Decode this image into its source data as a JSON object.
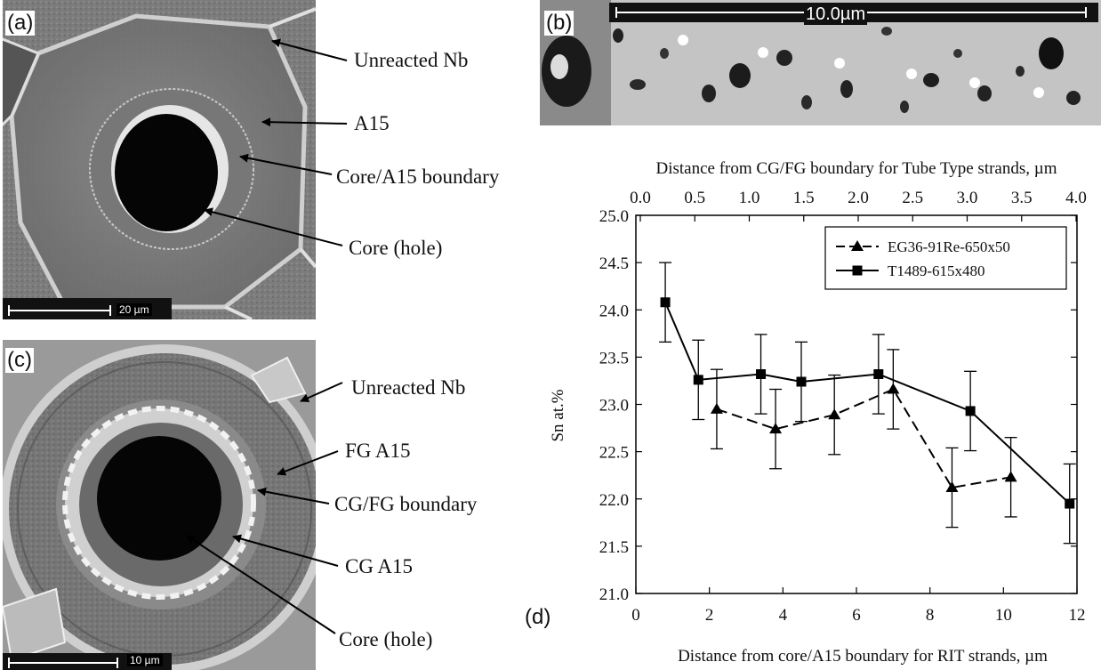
{
  "panels": {
    "a": {
      "label": "(a)",
      "scale_text": "20 µm",
      "annotations": [
        "Unreacted Nb",
        "A15",
        "Core/A15 boundary",
        "Core (hole)"
      ]
    },
    "b": {
      "label": "(b)",
      "scale_text": "10.0µm"
    },
    "c": {
      "label": "(c)",
      "scale_text": "10 µm",
      "annotations": [
        "Unreacted Nb",
        "FG A15",
        "CG/FG boundary",
        "CG A15",
        "Core (hole)"
      ]
    },
    "d": {
      "label": "(d)"
    }
  },
  "chart_data": {
    "type": "line",
    "top_xlabel": "Distance from CG/FG boundary for Tube Type strands, µm",
    "top_ticks": [
      "0.0",
      "0.5",
      "1.0",
      "1.5",
      "2.0",
      "2.5",
      "3.0",
      "3.5",
      "4.0"
    ],
    "xlabel": "Distance from core/A15 boundary for RIT strands, µm",
    "ylabel": "Sn at.%",
    "xlim": [
      0,
      12
    ],
    "ylim": [
      21.0,
      25.0
    ],
    "x_ticks": [
      "0",
      "2",
      "4",
      "6",
      "8",
      "10",
      "12"
    ],
    "y_ticks": [
      "21.0",
      "21.5",
      "22.0",
      "22.5",
      "23.0",
      "23.5",
      "24.0",
      "24.5",
      "25.0"
    ],
    "legend_position": "top-right",
    "series": [
      {
        "name": "EG36-91Re-650x50",
        "marker": "triangle",
        "line_style": "dashed",
        "x": [
          2.2,
          3.8,
          5.4,
          7.0,
          8.6,
          10.2
        ],
        "y": [
          22.95,
          22.74,
          22.89,
          23.16,
          22.12,
          22.23
        ],
        "error": [
          0.42,
          0.42,
          0.42,
          0.42,
          0.42,
          0.42
        ]
      },
      {
        "name": "T1489-615x480",
        "marker": "square",
        "line_style": "solid",
        "x": [
          0.8,
          1.7,
          3.4,
          4.5,
          6.6,
          9.1,
          11.8
        ],
        "y": [
          24.08,
          23.26,
          23.32,
          23.24,
          23.32,
          22.93,
          21.95
        ],
        "error": [
          0.42,
          0.42,
          0.42,
          0.42,
          0.42,
          0.42,
          0.42
        ]
      }
    ]
  }
}
